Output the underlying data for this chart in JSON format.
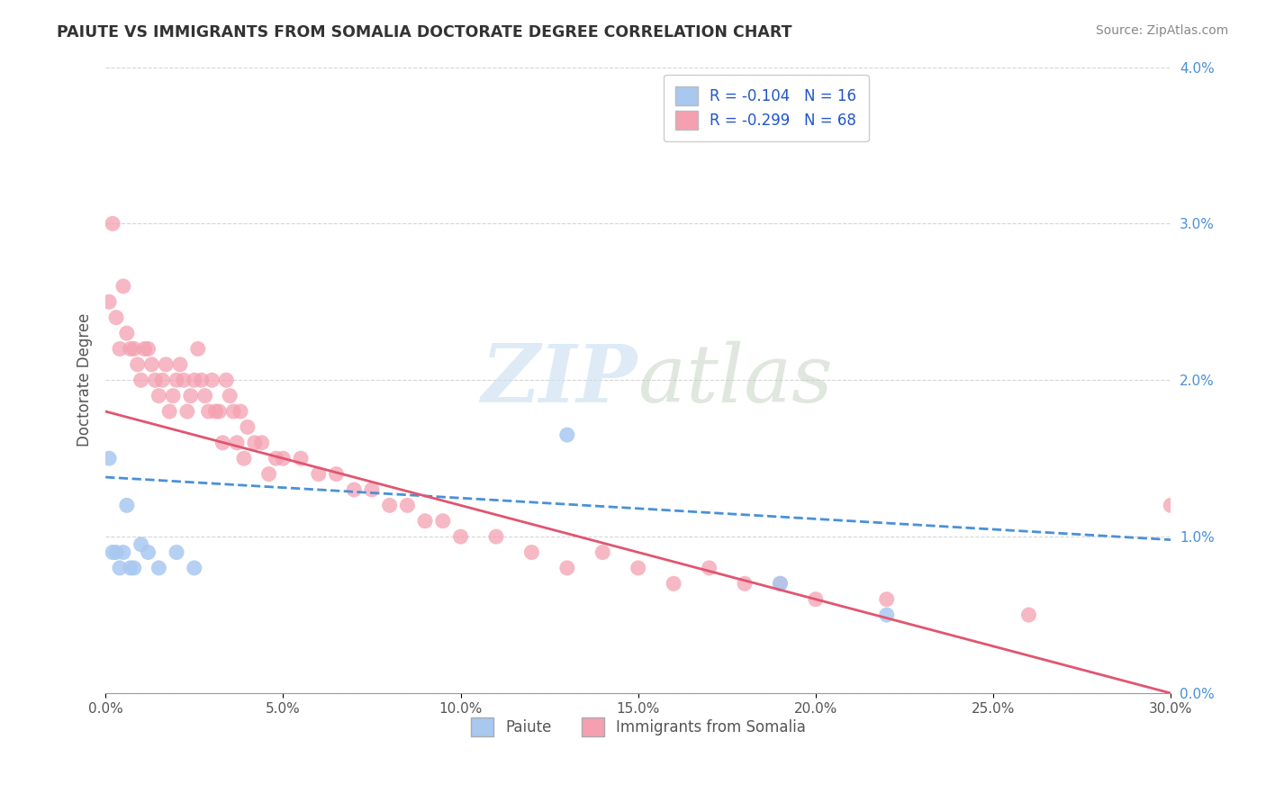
{
  "title": "PAIUTE VS IMMIGRANTS FROM SOMALIA DOCTORATE DEGREE CORRELATION CHART",
  "source": "Source: ZipAtlas.com",
  "ylabel": "Doctorate Degree",
  "legend_labels": [
    "Paiute",
    "Immigrants from Somalia"
  ],
  "legend_r": [
    -0.104,
    -0.299
  ],
  "legend_n": [
    16,
    68
  ],
  "xmin": 0.0,
  "xmax": 0.3,
  "ymin": 0.0,
  "ymax": 0.04,
  "yticks": [
    0.0,
    0.01,
    0.02,
    0.03,
    0.04
  ],
  "xticks": [
    0.0,
    0.05,
    0.1,
    0.15,
    0.2,
    0.25,
    0.3
  ],
  "color_paiute": "#a8c8f0",
  "color_somalia": "#f4a0b0",
  "line_color_paiute": "#4a90d9",
  "line_color_somalia": "#e05570",
  "watermark_zip": "ZIP",
  "watermark_atlas": "atlas",
  "paiute_x": [
    0.001,
    0.002,
    0.003,
    0.004,
    0.005,
    0.006,
    0.007,
    0.008,
    0.01,
    0.012,
    0.015,
    0.02,
    0.025,
    0.13,
    0.19,
    0.22
  ],
  "paiute_y": [
    0.015,
    0.009,
    0.009,
    0.008,
    0.009,
    0.012,
    0.008,
    0.008,
    0.0095,
    0.009,
    0.008,
    0.009,
    0.008,
    0.0165,
    0.007,
    0.005
  ],
  "somalia_x": [
    0.001,
    0.002,
    0.003,
    0.004,
    0.005,
    0.006,
    0.007,
    0.008,
    0.009,
    0.01,
    0.011,
    0.012,
    0.013,
    0.014,
    0.015,
    0.016,
    0.017,
    0.018,
    0.019,
    0.02,
    0.021,
    0.022,
    0.023,
    0.024,
    0.025,
    0.026,
    0.027,
    0.028,
    0.029,
    0.03,
    0.031,
    0.032,
    0.033,
    0.034,
    0.035,
    0.036,
    0.037,
    0.038,
    0.039,
    0.04,
    0.042,
    0.044,
    0.046,
    0.048,
    0.05,
    0.055,
    0.06,
    0.065,
    0.07,
    0.075,
    0.08,
    0.085,
    0.09,
    0.095,
    0.1,
    0.11,
    0.12,
    0.13,
    0.14,
    0.15,
    0.16,
    0.17,
    0.18,
    0.19,
    0.2,
    0.22,
    0.26,
    0.3
  ],
  "somalia_y": [
    0.025,
    0.03,
    0.024,
    0.022,
    0.026,
    0.023,
    0.022,
    0.022,
    0.021,
    0.02,
    0.022,
    0.022,
    0.021,
    0.02,
    0.019,
    0.02,
    0.021,
    0.018,
    0.019,
    0.02,
    0.021,
    0.02,
    0.018,
    0.019,
    0.02,
    0.022,
    0.02,
    0.019,
    0.018,
    0.02,
    0.018,
    0.018,
    0.016,
    0.02,
    0.019,
    0.018,
    0.016,
    0.018,
    0.015,
    0.017,
    0.016,
    0.016,
    0.014,
    0.015,
    0.015,
    0.015,
    0.014,
    0.014,
    0.013,
    0.013,
    0.012,
    0.012,
    0.011,
    0.011,
    0.01,
    0.01,
    0.009,
    0.008,
    0.009,
    0.008,
    0.007,
    0.008,
    0.007,
    0.007,
    0.006,
    0.006,
    0.005,
    0.012
  ],
  "paiute_line_x0": 0.0,
  "paiute_line_x1": 0.3,
  "paiute_line_y0": 0.0138,
  "paiute_line_y1": 0.0098,
  "somalia_line_x0": 0.0,
  "somalia_line_x1": 0.3,
  "somalia_line_y0": 0.018,
  "somalia_line_y1": 0.0
}
